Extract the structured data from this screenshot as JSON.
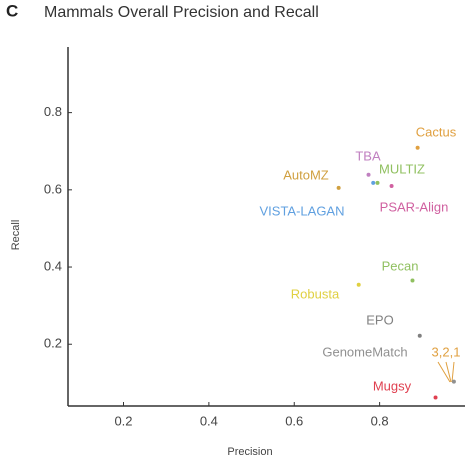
{
  "chart_data": {
    "type": "scatter",
    "panel_label": "C",
    "title": "Mammals Overall Precision and Recall",
    "x_label": "Precision",
    "y_label": "Recall",
    "xlim": [
      0.07,
      1.0
    ],
    "ylim": [
      0.04,
      0.97
    ],
    "xticks": [
      0.2,
      0.4,
      0.6,
      0.8
    ],
    "yticks": [
      0.2,
      0.4,
      0.6,
      0.8
    ],
    "series": [
      {
        "name": "Cactus",
        "color": "#e0a040",
        "x": [
          0.889
        ],
        "y": [
          0.709
        ]
      },
      {
        "name": "TBA",
        "color": "#c080c0",
        "x": [
          0.774
        ],
        "y": [
          0.639
        ]
      },
      {
        "name": "MULTIZ",
        "color": "#90c060",
        "x": [
          0.795
        ],
        "y": [
          0.618
        ]
      },
      {
        "name": "AutoMZ",
        "color": "#d0a040",
        "x": [
          0.704
        ],
        "y": [
          0.605
        ]
      },
      {
        "name": "PSAR-Align",
        "color": "#d060a0",
        "x": [
          0.828
        ],
        "y": [
          0.61
        ]
      },
      {
        "name": "VISTA-LAGAN",
        "color": "#60a0e0",
        "x": [
          0.785
        ],
        "y": [
          0.618
        ]
      },
      {
        "name": "Pecan",
        "color": "#90c060",
        "x": [
          0.877
        ],
        "y": [
          0.365
        ]
      },
      {
        "name": "Robusta",
        "color": "#e0d040",
        "x": [
          0.751
        ],
        "y": [
          0.354
        ]
      },
      {
        "name": "EPO",
        "color": "#808080",
        "x": [
          0.894
        ],
        "y": [
          0.222
        ]
      },
      {
        "name": "GenomeMatch",
        "color": "#909090",
        "x": [
          0.974
        ],
        "y": [
          0.103
        ]
      },
      {
        "name": "Mugsy",
        "color": "#e04050",
        "x": [
          0.931
        ],
        "y": [
          0.062
        ]
      }
    ],
    "annotation": "3,2,1"
  }
}
